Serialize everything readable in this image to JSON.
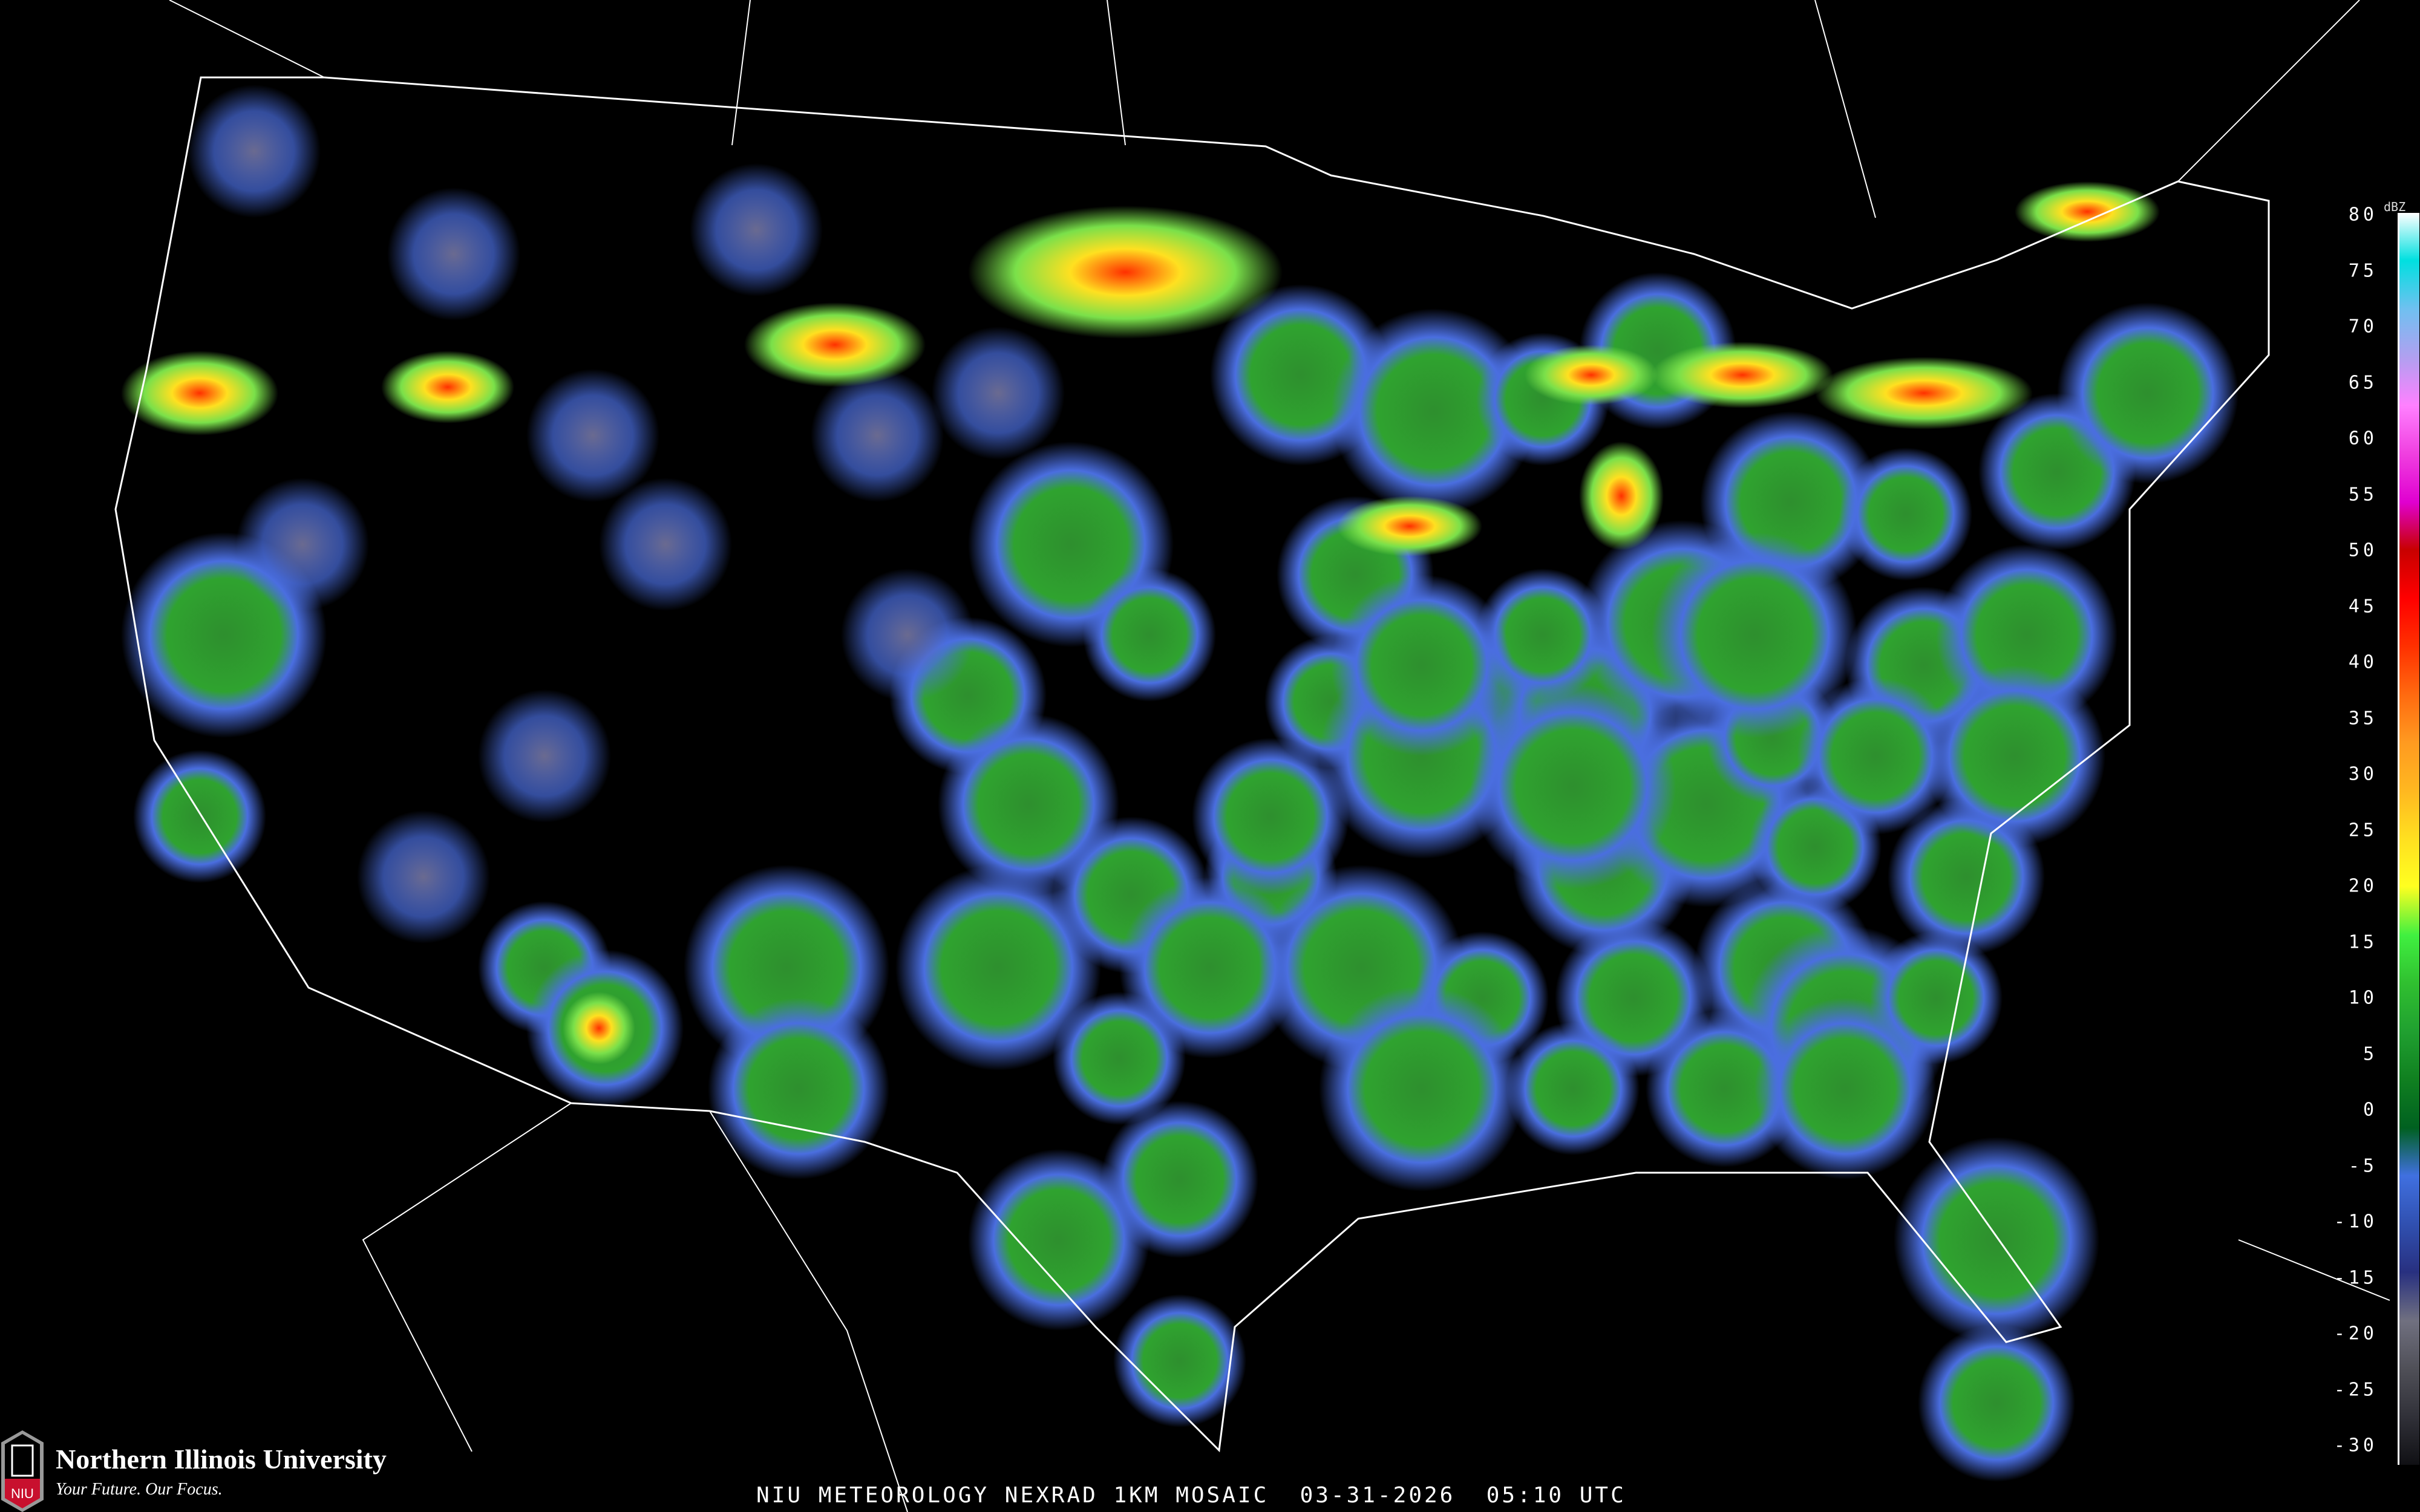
{
  "title": "NIU METEOROLOGY NEXRAD 1KM MOSAIC",
  "timestamp": "03-31-2026  05:10 UTC",
  "branding": {
    "name": "Northern Illinois University",
    "tagline": "Your Future. Our Focus.",
    "mark_text": "NIU",
    "brand_color": "#c8102e"
  },
  "legend": {
    "unit": "dBZ",
    "ticks": [
      "80",
      "75",
      "70",
      "65",
      "60",
      "55",
      "50",
      "45",
      "40",
      "35",
      "30",
      "25",
      "20",
      "15",
      "10",
      "5",
      "0",
      "-5",
      "-10",
      "-15",
      "-20",
      "-25",
      "-30"
    ],
    "colors": [
      "#ffffff",
      "#00e0e0",
      "#70c0f0",
      "#b0a0f0",
      "#ff80ff",
      "#f040e0",
      "#e000d0",
      "#c80000",
      "#ff0000",
      "#ff3000",
      "#ff6a10",
      "#ff9a20",
      "#ffb820",
      "#ffe020",
      "#ffff20",
      "#40f040",
      "#30c030",
      "#20a030",
      "#108020",
      "#006020",
      "#4070e0",
      "#3050b0",
      "#283080",
      "#707080",
      "#505058",
      "#303038",
      "#101014"
    ]
  },
  "radar_colors": {
    "weak": "#4a6ee0",
    "moderate": "#2fa32f",
    "strong": "#7ae04a",
    "heavy": "#ffe020",
    "intense": "#ff3000"
  }
}
